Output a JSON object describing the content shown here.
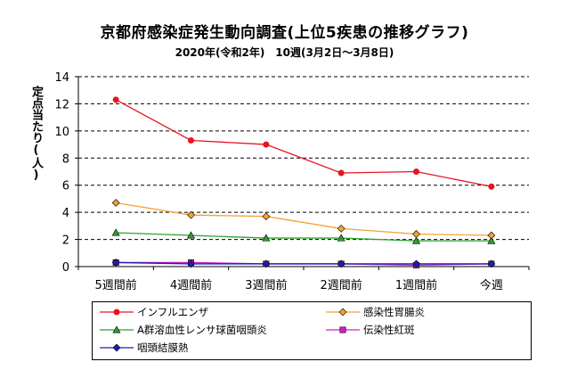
{
  "chart_data": {
    "type": "line",
    "title": "京都府感染症発生動向調査(上位5疾患の推移グラフ)",
    "subtitle": "2020年(令和2年)　10週(3月2日～3月8日)",
    "ylabel": "定点当たり(人)",
    "xlabel": "",
    "categories": [
      "5週間前",
      "4週間前",
      "3週間前",
      "2週間前",
      "1週間前",
      "今週"
    ],
    "ylim": [
      0,
      14
    ],
    "yticks": [
      0,
      2,
      4,
      6,
      8,
      10,
      12,
      14
    ],
    "grid": "horizontal dashed",
    "legend_position": "bottom",
    "series": [
      {
        "name": "インフルエンザ",
        "color": "#e8141e",
        "marker": "circle",
        "values": [
          12.3,
          9.3,
          9.0,
          6.9,
          7.0,
          5.9
        ]
      },
      {
        "name": "感染性胃腸炎",
        "color": "#f5a030",
        "marker": "diamond",
        "values": [
          4.7,
          3.8,
          3.7,
          2.8,
          2.4,
          2.3
        ]
      },
      {
        "name": "A群溶血性レンサ球菌咽頭炎",
        "color": "#2ea02e",
        "marker": "triangle",
        "values": [
          2.5,
          2.3,
          2.1,
          2.1,
          1.9,
          1.9
        ]
      },
      {
        "name": "伝染性紅斑",
        "color": "#d020c8",
        "marker": "square",
        "values": [
          0.3,
          0.3,
          0.2,
          0.2,
          0.1,
          0.2
        ]
      },
      {
        "name": "咽頭結膜熱",
        "color": "#1e1eb4",
        "marker": "diamond",
        "values": [
          0.3,
          0.2,
          0.2,
          0.2,
          0.2,
          0.2
        ]
      }
    ]
  }
}
